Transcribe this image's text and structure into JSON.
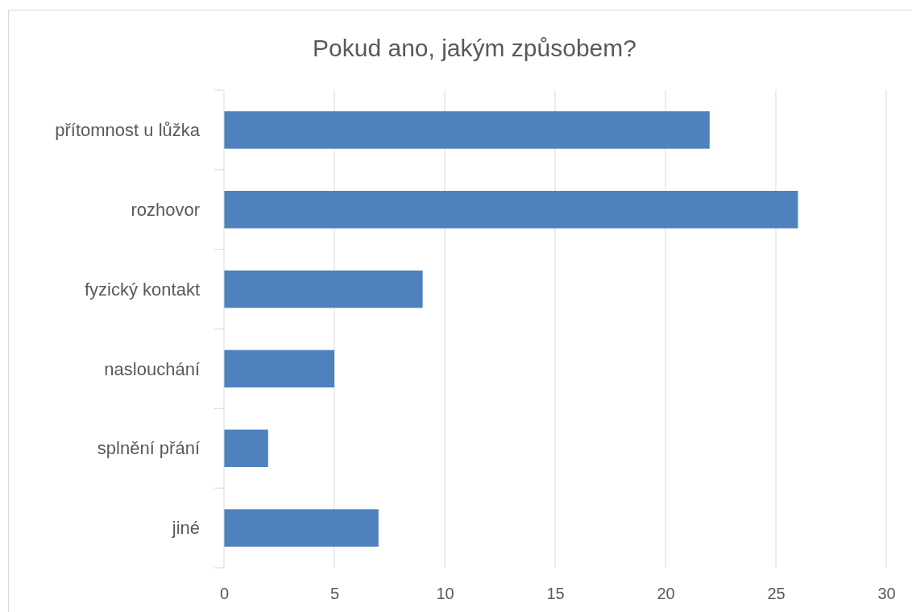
{
  "chart_data": {
    "type": "bar",
    "orientation": "horizontal",
    "title": "Pokud ano, jakým způsobem?",
    "categories": [
      "přítomnost u lůžka",
      "rozhovor",
      "fyzický kontakt",
      "naslouchání",
      "splnění přání",
      "jiné"
    ],
    "values": [
      22,
      26,
      9,
      5,
      2,
      7
    ],
    "color": "#4e81bd",
    "xlim": [
      0,
      30
    ],
    "xticks": [
      0,
      5,
      10,
      15,
      20,
      25,
      30
    ],
    "grid": "x"
  }
}
